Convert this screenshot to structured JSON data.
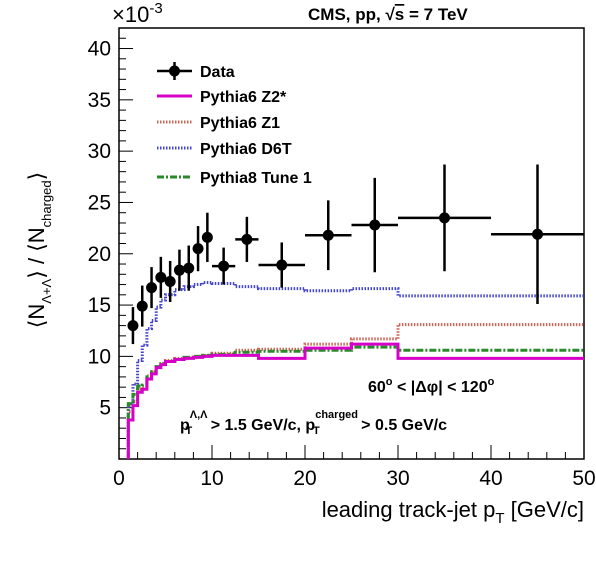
{
  "chart_data": {
    "type": "line",
    "title": "CMS, pp, √s = 7 TeV",
    "title_parts": {
      "prefix": "CMS, pp, ",
      "sqrt": "√",
      "s": "s",
      "suffix": " = 7 TeV"
    },
    "exponent_label": "×10",
    "exponent_power": "-3",
    "xlabel": "leading track-jet p",
    "xlabel_sub": "T",
    "xlabel_unit": " [GeV/c]",
    "ylabel_parts": {
      "open1": "⟨N",
      "sub1": "Λ+Λ",
      "close1": "⟩ / ⟨N",
      "sub2": "charged",
      "close2": "⟩"
    },
    "xlim": [
      0,
      50
    ],
    "ylim": [
      0,
      42
    ],
    "x_ticks": [
      "0",
      "10",
      "20",
      "30",
      "40",
      "50"
    ],
    "y_ticks": [
      "5",
      "10",
      "15",
      "20",
      "25",
      "30",
      "35",
      "40"
    ],
    "annotation_dphi": "60° < |Δφ| < 120°",
    "annotation_dphi_parts": {
      "a": "60",
      "deg1": "o",
      "b": " < |Δφ| < 120",
      "deg2": "o"
    },
    "annotation_cuts_parts": {
      "p1": "p",
      "sub1": "T",
      "sup1": "Λ,Λ",
      "mid": " > 1.5 GeV/c, p",
      "sub2": "T",
      "sup2": "charged",
      "end": " > 0.5 GeV/c"
    },
    "legend_position": "top-left",
    "series": [
      {
        "name": "Data",
        "kind": "points",
        "color": "#000000",
        "points": [
          {
            "x": 1.5,
            "y": 13.0,
            "xerr": 0.5,
            "yerr": 1.8
          },
          {
            "x": 2.5,
            "y": 14.9,
            "xerr": 0.5,
            "yerr": 2.0
          },
          {
            "x": 3.5,
            "y": 16.7,
            "xerr": 0.5,
            "yerr": 2.0
          },
          {
            "x": 4.5,
            "y": 17.7,
            "xerr": 0.5,
            "yerr": 2.0
          },
          {
            "x": 5.5,
            "y": 17.3,
            "xerr": 0.5,
            "yerr": 2.0
          },
          {
            "x": 6.5,
            "y": 18.4,
            "xerr": 0.5,
            "yerr": 2.0
          },
          {
            "x": 7.5,
            "y": 18.6,
            "xerr": 0.5,
            "yerr": 2.2
          },
          {
            "x": 8.5,
            "y": 20.5,
            "xerr": 0.5,
            "yerr": 2.2
          },
          {
            "x": 9.5,
            "y": 21.6,
            "xerr": 0.5,
            "yerr": 2.4
          },
          {
            "x": 11.25,
            "y": 18.8,
            "xerr": 1.25,
            "yerr": 1.8
          },
          {
            "x": 13.75,
            "y": 21.4,
            "xerr": 1.25,
            "yerr": 2.2
          },
          {
            "x": 17.5,
            "y": 18.9,
            "xerr": 2.5,
            "yerr": 2.2
          },
          {
            "x": 22.5,
            "y": 21.8,
            "xerr": 2.5,
            "yerr": 3.4
          },
          {
            "x": 27.5,
            "y": 22.8,
            "xerr": 2.5,
            "yerr": 4.6
          },
          {
            "x": 35.0,
            "y": 23.5,
            "xerr": 5.0,
            "yerr": 5.2
          },
          {
            "x": 45.0,
            "y": 21.9,
            "xerr": 5.0,
            "yerr": 6.8
          }
        ]
      },
      {
        "name": "Pythia6 Z2*",
        "kind": "step",
        "color": "#d600c8",
        "style": "solid",
        "edges": [
          1,
          1.5,
          2,
          2.5,
          3,
          3.5,
          4,
          4.5,
          5,
          6,
          7,
          8,
          9,
          10,
          12.5,
          15,
          20,
          25,
          30,
          40,
          50
        ],
        "values": [
          3.8,
          5.2,
          6.5,
          6.8,
          7.8,
          8.3,
          8.9,
          9.2,
          9.5,
          9.7,
          9.8,
          9.9,
          10.0,
          10.1,
          10.1,
          9.8,
          10.8,
          11.2,
          9.8,
          9.8
        ]
      },
      {
        "name": "Pythia6 Z1",
        "kind": "step",
        "color": "#cc6655",
        "style": "dotted",
        "edges": [
          1,
          1.5,
          2,
          2.5,
          3,
          3.5,
          4,
          4.5,
          5,
          6,
          7,
          8,
          9,
          10,
          12.5,
          15,
          20,
          25,
          30,
          40,
          50
        ],
        "values": [
          4.6,
          5.6,
          6.8,
          7.1,
          8.1,
          8.5,
          9.0,
          9.3,
          9.6,
          9.8,
          9.9,
          10.0,
          10.1,
          10.3,
          10.6,
          10.7,
          11.2,
          11.7,
          13.1,
          13.1
        ]
      },
      {
        "name": "Pythia6 D6T",
        "kind": "step",
        "color": "#4444cc",
        "style": "dotted",
        "edges": [
          1,
          1.5,
          2,
          2.5,
          3,
          3.5,
          4,
          4.5,
          5,
          6,
          7,
          8,
          9,
          10,
          12.5,
          15,
          20,
          25,
          30,
          40,
          50
        ],
        "values": [
          5.2,
          7.3,
          9.6,
          11.1,
          12.7,
          13.5,
          14.8,
          15.5,
          16.0,
          16.5,
          16.8,
          17.0,
          17.2,
          17.1,
          16.8,
          16.6,
          16.4,
          16.6,
          15.9,
          15.9
        ]
      },
      {
        "name": "Pythia8 Tune 1",
        "kind": "step",
        "color": "#2a8a2a",
        "style": "dashdot",
        "edges": [
          1,
          1.5,
          2,
          2.5,
          3,
          3.5,
          4,
          4.5,
          5,
          6,
          7,
          8,
          9,
          10,
          12.5,
          15,
          20,
          25,
          30,
          40,
          50
        ],
        "values": [
          5.4,
          6.3,
          7.1,
          7.2,
          8.0,
          8.5,
          9.0,
          9.3,
          9.5,
          9.7,
          9.9,
          10.0,
          10.1,
          10.2,
          10.4,
          10.5,
          10.6,
          10.9,
          10.6,
          10.6
        ]
      }
    ]
  }
}
